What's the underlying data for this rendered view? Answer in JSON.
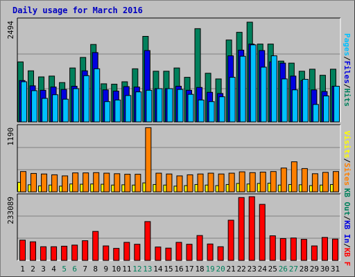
{
  "title": "Daily usage for March 2016",
  "colors": {
    "hits": "#00805c",
    "files": "#0000e0",
    "pages": "#00c0ff",
    "visits": "#ffff00",
    "sites": "#ff8000",
    "kbytes": "#ff0000",
    "kb_in": "#0000e0",
    "kb_out": "#00805c",
    "weekend": "#00805c",
    "weekday": "#000000"
  },
  "chart_data": [
    {
      "type": "bar",
      "title": "Daily usage for March 2016",
      "categories": [
        "1",
        "2",
        "3",
        "4",
        "5",
        "6",
        "7",
        "8",
        "9",
        "10",
        "11",
        "12",
        "13",
        "14",
        "15",
        "16",
        "17",
        "18",
        "19",
        "20",
        "21",
        "22",
        "23",
        "24",
        "25",
        "26",
        "27",
        "28",
        "29",
        "30",
        "31"
      ],
      "weekend_days": [
        "5",
        "6",
        "12",
        "13",
        "19",
        "20",
        "26",
        "27"
      ],
      "ymax_label": "2494",
      "ylim": [
        0,
        2494
      ],
      "axis_label_parts": [
        {
          "text": "Pages",
          "color": "#00c0ff"
        },
        {
          "text": "/",
          "color": "#000000"
        },
        {
          "text": "Files",
          "color": "#0000e0"
        },
        {
          "text": "/",
          "color": "#000000"
        },
        {
          "text": "Hits",
          "color": "#00805c"
        }
      ],
      "series": [
        {
          "name": "Hits",
          "color": "#00805c",
          "values": [
            1480,
            1260,
            1110,
            1130,
            970,
            1330,
            1590,
            1910,
            940,
            930,
            990,
            1310,
            2110,
            1250,
            1250,
            1330,
            1100,
            2300,
            1200,
            1060,
            2020,
            2210,
            2460,
            1920,
            1920,
            1500,
            1450,
            1250,
            1300,
            1150,
            1300
          ]
        },
        {
          "name": "Files",
          "color": "#0000e0",
          "values": [
            1020,
            890,
            780,
            860,
            800,
            880,
            1260,
            1710,
            790,
            760,
            870,
            860,
            1760,
            820,
            820,
            880,
            780,
            850,
            730,
            700,
            1630,
            1770,
            1920,
            1760,
            1480,
            1450,
            1130,
            1020,
            790,
            750,
            880
          ]
        },
        {
          "name": "Pages",
          "color": "#00c0ff",
          "values": [
            990,
            770,
            580,
            670,
            560,
            820,
            1140,
            1310,
            500,
            540,
            650,
            740,
            780,
            820,
            820,
            800,
            680,
            540,
            500,
            620,
            1100,
            1620,
            1900,
            1350,
            1630,
            1060,
            790,
            1050,
            430,
            640,
            880
          ]
        }
      ]
    },
    {
      "type": "bar",
      "categories": [
        "1",
        "2",
        "3",
        "4",
        "5",
        "6",
        "7",
        "8",
        "9",
        "10",
        "11",
        "12",
        "13",
        "14",
        "15",
        "16",
        "17",
        "18",
        "19",
        "20",
        "21",
        "22",
        "23",
        "24",
        "25",
        "26",
        "27",
        "28",
        "29",
        "30",
        "31"
      ],
      "ymax_label": "1190",
      "ylim": [
        0,
        1190
      ],
      "axis_label_parts": [
        {
          "text": "Visits",
          "color": "#ffff00"
        },
        {
          "text": "/",
          "color": "#000000"
        },
        {
          "text": "Sites",
          "color": "#ff8000"
        }
      ],
      "series": [
        {
          "name": "Sites",
          "color": "#ff8000",
          "values": [
            375,
            340,
            330,
            315,
            295,
            350,
            350,
            355,
            345,
            335,
            325,
            325,
            1185,
            345,
            330,
            295,
            315,
            330,
            345,
            330,
            345,
            370,
            355,
            365,
            375,
            440,
            555,
            430,
            335,
            360,
            375
          ]
        },
        {
          "name": "Visits",
          "color": "#ffff00",
          "values": [
            175,
            130,
            110,
            125,
            105,
            145,
            140,
            145,
            140,
            125,
            130,
            125,
            165,
            135,
            125,
            105,
            115,
            135,
            125,
            115,
            135,
            155,
            145,
            155,
            160,
            125,
            135,
            130,
            115,
            125,
            135
          ]
        }
      ]
    },
    {
      "type": "bar",
      "categories": [
        "1",
        "2",
        "3",
        "4",
        "5",
        "6",
        "7",
        "8",
        "9",
        "10",
        "11",
        "12",
        "13",
        "14",
        "15",
        "16",
        "17",
        "18",
        "19",
        "20",
        "21",
        "22",
        "23",
        "24",
        "25",
        "26",
        "27",
        "28",
        "29",
        "30",
        "31"
      ],
      "ymax_label": "233089",
      "ylim": [
        0,
        233089
      ],
      "axis_label_parts": [
        {
          "text": "KB Out",
          "color": "#00805c"
        },
        {
          "text": "/",
          "color": "#000000"
        },
        {
          "text": "KB In",
          "color": "#0000e0"
        },
        {
          "text": "/",
          "color": "#000000"
        },
        {
          "text": "KB F",
          "color": "#ff0000"
        }
      ],
      "series": [
        {
          "name": "KB F",
          "color": "#ff0000",
          "values": [
            74000,
            68000,
            50000,
            50000,
            52000,
            56000,
            72000,
            106000,
            53000,
            44000,
            66000,
            59000,
            142000,
            49000,
            45000,
            66000,
            59000,
            91000,
            60000,
            50000,
            147000,
            230000,
            233000,
            205000,
            90000,
            80000,
            82000,
            77000,
            53000,
            84000,
            78000
          ]
        }
      ]
    }
  ]
}
